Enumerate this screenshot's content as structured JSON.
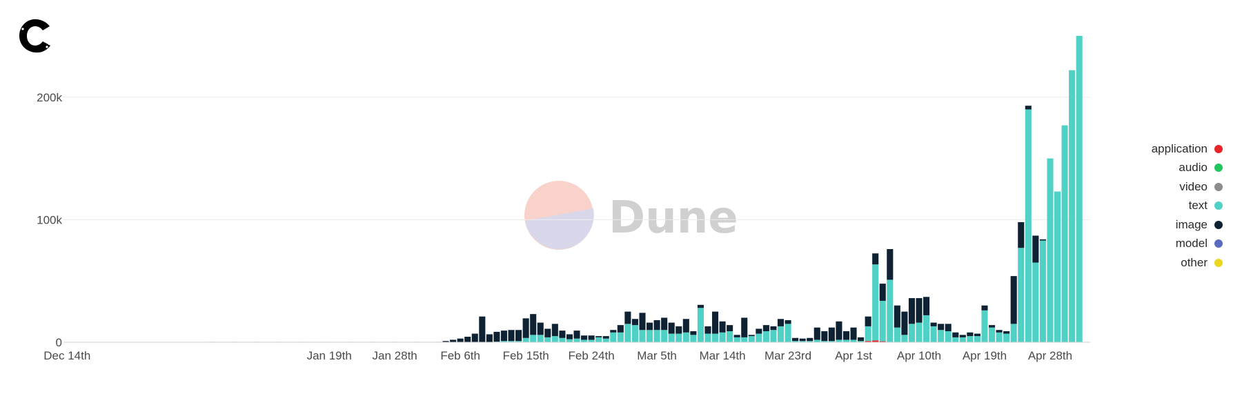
{
  "chart_data": {
    "type": "bar",
    "stacked": true,
    "ylim": [
      0,
      250000
    ],
    "yticks": [
      {
        "value": 0,
        "label": "0"
      },
      {
        "value": 100000,
        "label": "100k"
      },
      {
        "value": 200000,
        "label": "200k"
      }
    ],
    "x_start": "2023-12-14",
    "x_tick_labels": [
      "Dec 14th",
      "Jan 19th",
      "Jan 28th",
      "Feb 6th",
      "Feb 15th",
      "Feb 24th",
      "Mar 5th",
      "Mar 14th",
      "Mar 23rd",
      "Apr 1st",
      "Apr 10th",
      "Apr 19th",
      "Apr 28th"
    ],
    "series": [
      {
        "name": "application",
        "color": "#e5252a",
        "values": []
      },
      {
        "name": "audio",
        "color": "#22c55e",
        "values": []
      },
      {
        "name": "video",
        "color": "#8c8c8c",
        "values": []
      },
      {
        "name": "text",
        "color": "#4fd1c5",
        "values": []
      },
      {
        "name": "image",
        "color": "#0f2233",
        "values": []
      },
      {
        "name": "model",
        "color": "#5b6bbf",
        "values": []
      },
      {
        "name": "other",
        "color": "#ead61c",
        "values": []
      }
    ],
    "legend_position": "right",
    "grid": true,
    "watermark": "Dune"
  }
}
